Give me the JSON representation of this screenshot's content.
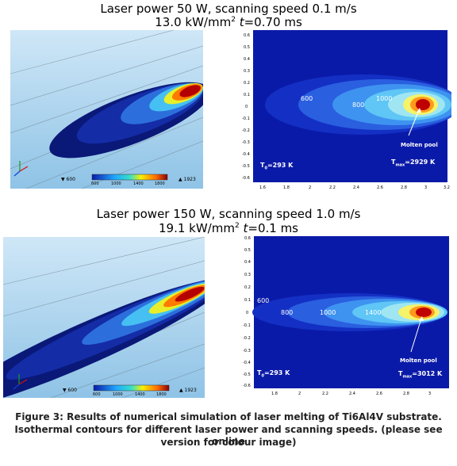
{
  "panel_top": {
    "title_line1": "Laser power 50 W, scanning speed 0.1 m/s",
    "title_line2_prefix": "13.0 kW/mm",
    "title_line2_sup": "2",
    "title_line2_t": "t",
    "title_line2_suffix": "=0.70 ms",
    "view3d": {
      "legend_min": "▼ 600",
      "legend_max": "▲ 1923",
      "colorbar_ticks": [
        "600",
        "1000",
        "1400",
        "1800"
      ]
    },
    "map2d": {
      "contour_labels": [
        "600",
        "800",
        "1000"
      ],
      "annotation": "Molten pool",
      "t0_label": "T",
      "t0_sub": "0",
      "t0_value": "=293 K",
      "tmax_label": "T",
      "tmax_sub": "max",
      "tmax_value": "=2929 K",
      "x_ticks": [
        "1.6",
        "1.8",
        "2",
        "2.2",
        "2.4",
        "2.6",
        "2.8",
        "3",
        "3.2"
      ],
      "y_ticks": [
        "0.6",
        "0.5",
        "0.4",
        "0.3",
        "0.2",
        "0.1",
        "0",
        "-0.1",
        "-0.2",
        "-0.3",
        "-0.4",
        "-0.5",
        "-0.6"
      ]
    }
  },
  "panel_bottom": {
    "title_line1": "Laser power 150 W, scanning speed 1.0 m/s",
    "title_line2_prefix": "19.1 kW/mm",
    "title_line2_sup": "2",
    "title_line2_t": "t",
    "title_line2_suffix": "=0.1 ms",
    "view3d": {
      "legend_min": "▼ 600",
      "legend_max": "▲ 1923",
      "colorbar_ticks": [
        "600",
        "1000",
        "1400",
        "1800"
      ]
    },
    "map2d": {
      "contour_labels": [
        "600",
        "800",
        "1000",
        "1400"
      ],
      "annotation": "Molten pool",
      "t0_label": "T",
      "t0_sub": "0",
      "t0_value": "=293 K",
      "tmax_label": "T",
      "tmax_sub": "max",
      "tmax_value": "=3012 K",
      "x_ticks": [
        "1.8",
        "2",
        "2.2",
        "2.4",
        "2.6",
        "2.8",
        "3"
      ],
      "y_ticks": [
        "0.6",
        "0.5",
        "0.4",
        "0.3",
        "0.2",
        "0.1",
        "0",
        "-0.1",
        "-0.2",
        "-0.3",
        "-0.4",
        "-0.5",
        "-0.6"
      ]
    }
  },
  "caption": {
    "line1": "Figure 3: Results of numerical simulation of laser melting of Ti6Al4V substrate.",
    "line2": "Isothermal contours for different laser power and scanning speeds. (please see online",
    "line3": "version for colour image)"
  },
  "colors": {
    "map_background": "#0a1aa8",
    "sky_3d": "#a9d4ef",
    "hot_core": "#8b0000"
  }
}
